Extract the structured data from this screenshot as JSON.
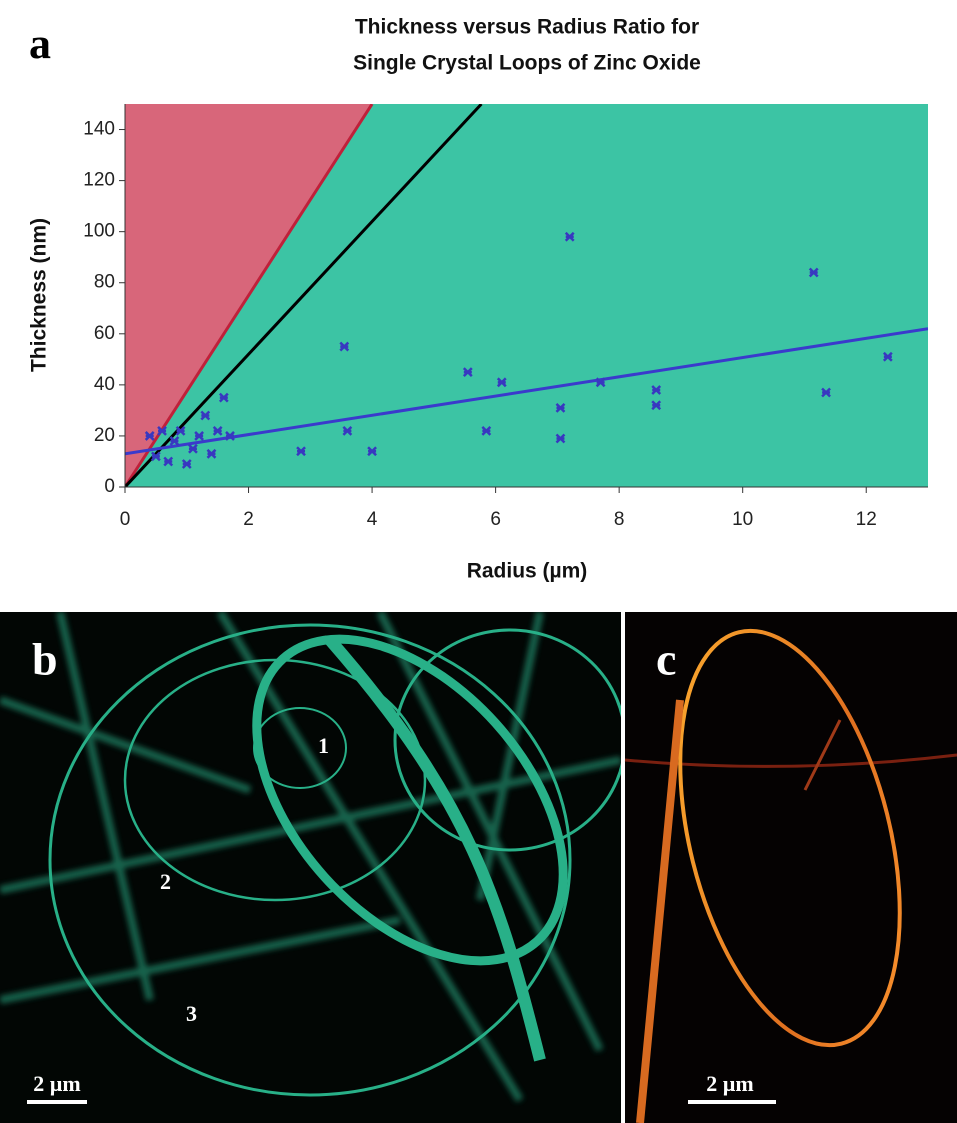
{
  "panel_label": "a",
  "chart_data": {
    "type": "scatter",
    "title": [
      "Thickness versus Radius Ratio for",
      "Single Crystal Loops of Zinc Oxide"
    ],
    "x_label": "Radius (µm)",
    "y_label": "Thickness (nm)",
    "xlim": [
      0,
      13
    ],
    "ylim": [
      0,
      150
    ],
    "xticks": [
      0,
      2,
      4,
      6,
      8,
      10,
      12
    ],
    "yticks": [
      0,
      20,
      40,
      60,
      80,
      100,
      120,
      140
    ],
    "background_color": "#3cc4a4",
    "excluded_region_color": "#d8667a",
    "series": [
      {
        "color": "#3838c0",
        "x": [
          0.4,
          0.5,
          0.6,
          0.7,
          0.8,
          0.9,
          1.0,
          1.1,
          1.2,
          1.3,
          1.4,
          1.5,
          1.6,
          1.7,
          2.85,
          3.55,
          3.6,
          4.0,
          5.55,
          5.85,
          6.1,
          7.05,
          7.05,
          7.2,
          7.7,
          8.6,
          8.6,
          11.15,
          11.35,
          12.35
        ],
        "values": [
          20,
          12,
          22,
          10,
          18,
          22,
          9,
          15,
          20,
          28,
          13,
          22,
          35,
          20,
          14,
          55,
          22,
          14,
          45,
          22,
          41,
          31,
          19,
          98,
          41,
          38,
          32,
          84,
          37,
          51
        ]
      }
    ],
    "lines": [
      {
        "color": "#c0203a",
        "x": [
          0,
          4
        ],
        "y": [
          0,
          150
        ]
      },
      {
        "color": "#000000",
        "x": [
          0,
          5.77
        ],
        "y": [
          0,
          150
        ]
      },
      {
        "color": "#3a3acc",
        "x": [
          0,
          13
        ],
        "y": [
          13,
          62
        ]
      }
    ]
  },
  "panel_b": {
    "label": "b",
    "loops": [
      "1",
      "2",
      "3"
    ],
    "scale_bar": "2 µm"
  },
  "panel_c": {
    "label": "c",
    "scale_bar": "2 µm"
  }
}
